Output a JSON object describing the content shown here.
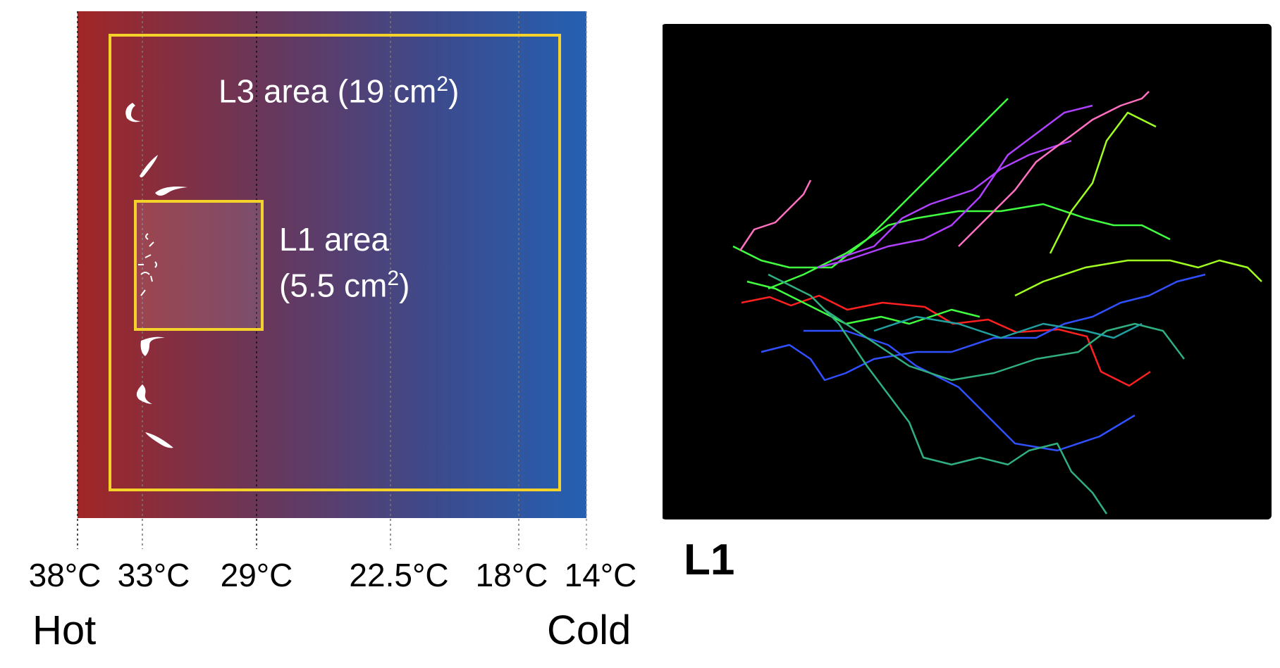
{
  "left_diagram": {
    "l3_area": {
      "label": "L3 area (19 cm",
      "unit_exp": "2",
      "close": ")"
    },
    "l1_area": {
      "line1": "L1 area",
      "line2": "(5.5 cm",
      "unit_exp": "2",
      "close": ")"
    },
    "temperature_ticks": [
      "38°C",
      "33°C",
      "29°C",
      "22.5°C",
      "18°C",
      "14°C"
    ],
    "hot_label": "Hot",
    "cold_label": "Cold",
    "colors": {
      "hot": "#9b2a2a",
      "cold": "#2760b0",
      "border": "#f5d22a"
    }
  },
  "right_diagram": {
    "panel_label": "L1",
    "track_colors": [
      "#ff2020",
      "#3050ff",
      "#40ff40",
      "#b040ff",
      "#ff70c0",
      "#30b080",
      "#a0ff20",
      "#20a0a0"
    ]
  }
}
